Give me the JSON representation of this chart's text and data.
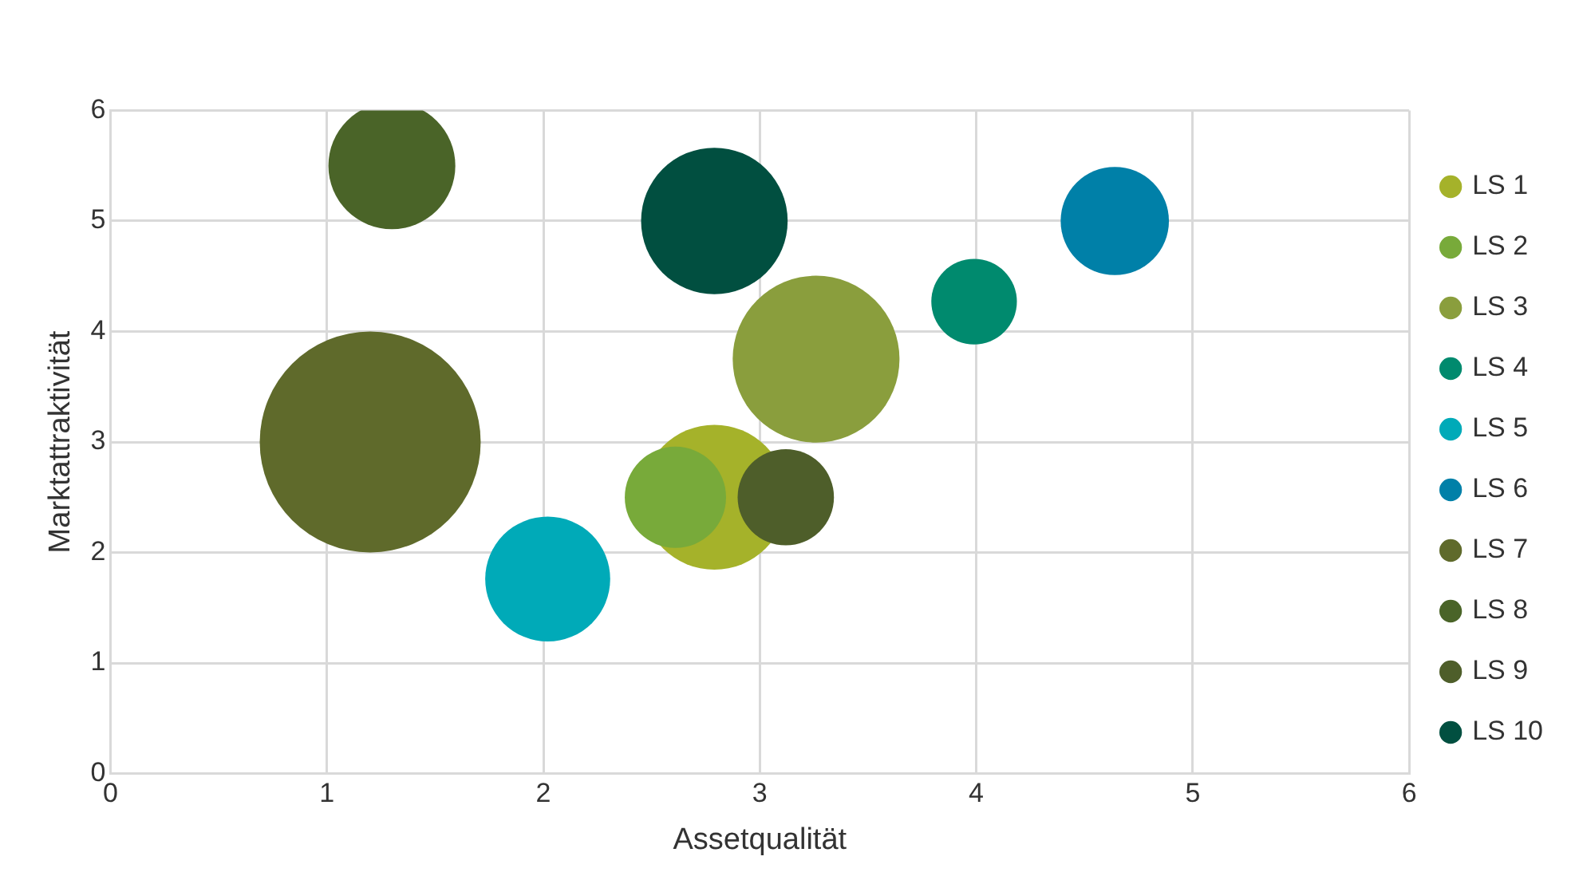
{
  "chart_data": {
    "type": "bubble",
    "xlabel": "Assetqualität",
    "ylabel": "Marktattraktivität",
    "xlim": [
      0,
      6
    ],
    "xticks": [
      0,
      1,
      2,
      3,
      4,
      5,
      6
    ],
    "ylim": [
      0,
      6
    ],
    "yticks": [
      0,
      1,
      2,
      3,
      4,
      5,
      6
    ],
    "grid": true,
    "legend": "right",
    "marker": "circle",
    "series": [
      {
        "name": "LS 1",
        "color": "#a5b22a",
        "x": [
          2.79
        ],
        "values": [
          2.5
        ],
        "sizes": [
          0.43
        ]
      },
      {
        "name": "LS 2",
        "color": "#78aa3a",
        "x": [
          2.61
        ],
        "values": [
          2.5
        ],
        "sizes": [
          0.21
        ]
      },
      {
        "name": "LS 3",
        "color": "#8a9e3d",
        "x": [
          3.26
        ],
        "values": [
          3.75
        ],
        "sizes": [
          0.57
        ]
      },
      {
        "name": "LS 4",
        "color": "#008a6e",
        "x": [
          3.99
        ],
        "values": [
          4.27
        ],
        "sizes": [
          0.15
        ]
      },
      {
        "name": "LS 5",
        "color": "#00aab8",
        "x": [
          2.02
        ],
        "values": [
          1.76
        ],
        "sizes": [
          0.32
        ]
      },
      {
        "name": "LS 6",
        "color": "#0080a8",
        "x": [
          4.64
        ],
        "values": [
          5.0
        ],
        "sizes": [
          0.24
        ]
      },
      {
        "name": "LS 7",
        "color": "#5f6a2b",
        "x": [
          1.2
        ],
        "values": [
          3.0
        ],
        "sizes": [
          1
        ]
      },
      {
        "name": "LS 8",
        "color": "#4a6428",
        "x": [
          1.3
        ],
        "values": [
          5.5
        ],
        "sizes": [
          0.33
        ]
      },
      {
        "name": "LS 9",
        "color": "#4e5e2a",
        "x": [
          3.12
        ],
        "values": [
          2.5
        ],
        "sizes": [
          0.19
        ]
      },
      {
        "name": "LS 10",
        "color": "#014f40",
        "x": [
          2.79
        ],
        "values": [
          5.0
        ],
        "sizes": [
          0.44
        ]
      }
    ]
  }
}
